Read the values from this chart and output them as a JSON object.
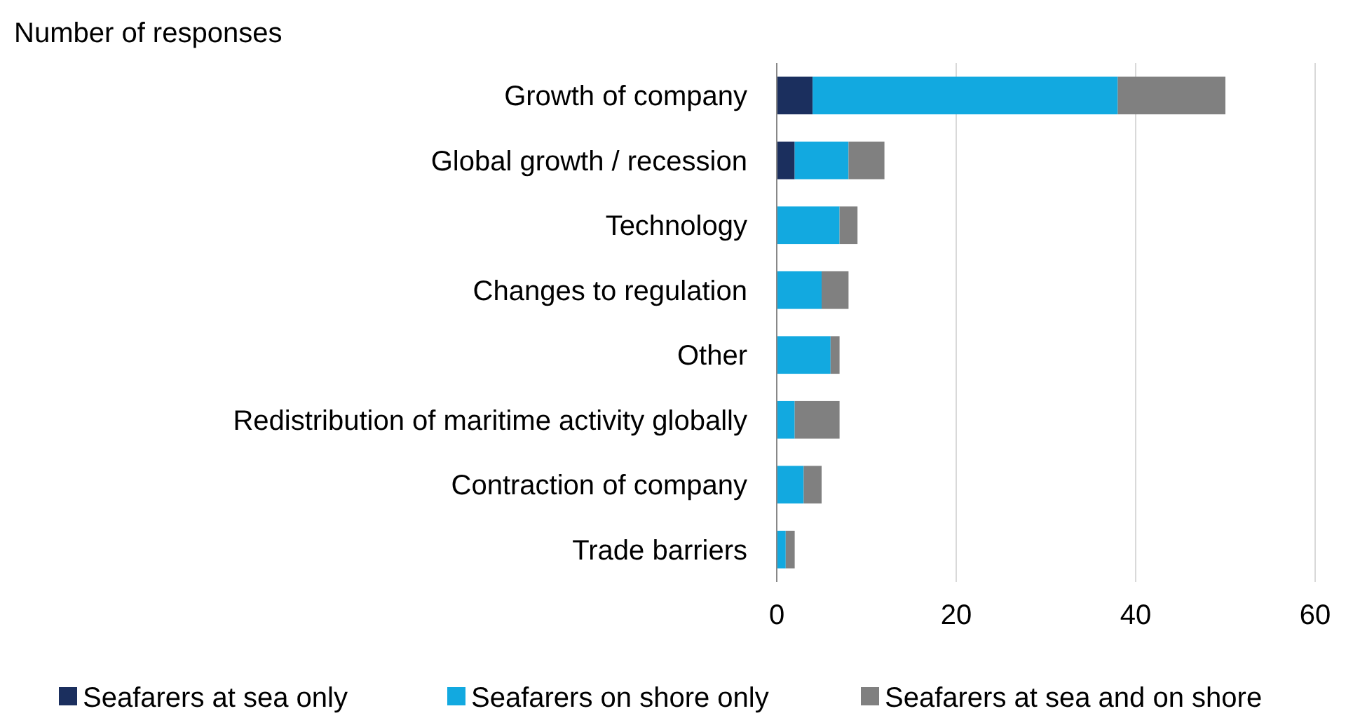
{
  "chart_data": {
    "type": "bar",
    "orientation": "horizontal",
    "stacked": true,
    "xlabel": "Number of responses",
    "categories": [
      "Growth of company",
      "Global growth / recession",
      "Technology",
      "Changes to regulation",
      "Other",
      "Redistribution of maritime activity globally",
      "Contraction of company",
      "Trade barriers"
    ],
    "series": [
      {
        "name": "Seafarers at sea only",
        "color": "#1b2f5e",
        "values": [
          4,
          2,
          0,
          0,
          0,
          0,
          0,
          0
        ]
      },
      {
        "name": "Seafarers on shore only",
        "color": "#12a9e0",
        "values": [
          34,
          6,
          7,
          5,
          6,
          2,
          3,
          1
        ]
      },
      {
        "name": "Seafarers at sea and on shore",
        "color": "#808080",
        "values": [
          12,
          4,
          2,
          3,
          1,
          5,
          2,
          1
        ]
      }
    ],
    "xlim": [
      0,
      60
    ],
    "xticks": [
      0,
      20,
      40,
      60
    ],
    "grid": "x",
    "legend": "bottom"
  }
}
